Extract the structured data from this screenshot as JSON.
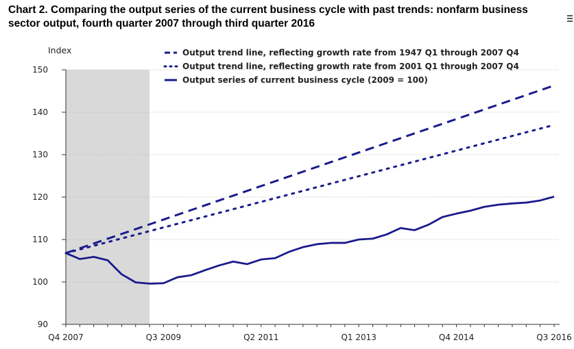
{
  "chart_data": {
    "type": "line",
    "title": "Chart 2. Comparing the output series of the current business cycle with past trends: nonfarm business sector output, fourth quarter 2007 through third quarter 2016",
    "ylabel": "Index",
    "ylim": [
      90,
      150
    ],
    "yticks": [
      90,
      100,
      110,
      120,
      130,
      140,
      150
    ],
    "x_quarters": 36,
    "xtick_labels": [
      {
        "q": 0,
        "label": "Q4 2007"
      },
      {
        "q": 7,
        "label": "Q3 2009"
      },
      {
        "q": 14,
        "label": "Q2 2011"
      },
      {
        "q": 21,
        "label": "Q1 2013"
      },
      {
        "q": 28,
        "label": "Q4 2014"
      },
      {
        "q": 35,
        "label": "Q3 2016"
      }
    ],
    "recession": {
      "from_q": 0,
      "to_q": 6
    },
    "grid": true,
    "legend": "top",
    "series": [
      {
        "name": "Output trend line, reflecting growth rate from 1947 Q1 through 2007 Q4",
        "style": "dashed",
        "start": 106.8,
        "end": 146.3
      },
      {
        "name": "Output trend line, reflecting growth rate from 2001 Q1 through 2007 Q4",
        "style": "dotted",
        "start": 106.8,
        "end": 137.0
      },
      {
        "name": "Output series of current business cycle (2009 = 100)",
        "style": "solid",
        "values": [
          106.8,
          105.4,
          105.9,
          105.1,
          101.8,
          99.9,
          99.6,
          99.7,
          101.1,
          101.6,
          102.8,
          103.9,
          104.8,
          104.2,
          105.3,
          105.6,
          107.1,
          108.2,
          108.9,
          109.2,
          109.2,
          110.0,
          110.2,
          111.2,
          112.7,
          112.2,
          113.5,
          115.3,
          116.1,
          116.8,
          117.7,
          118.2,
          118.5,
          118.7,
          119.2,
          120.1
        ]
      }
    ],
    "colors": {
      "line": "#1a1a8c",
      "recession": "#d9d9d9",
      "grid": "#bbbbbb",
      "axis": "#333333",
      "text": "#222222"
    }
  }
}
